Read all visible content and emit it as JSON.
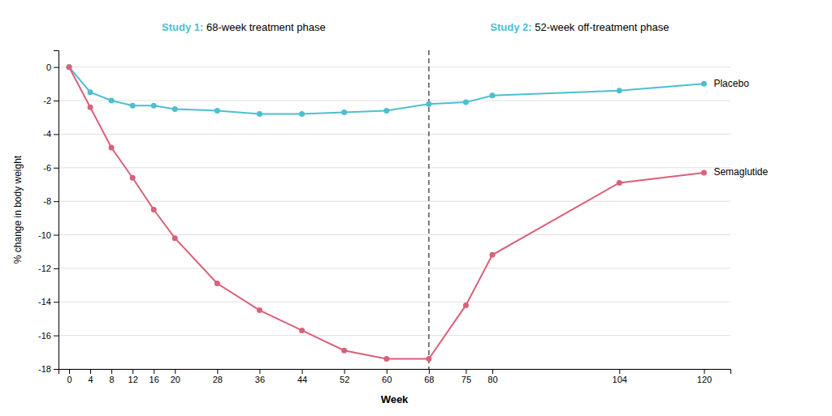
{
  "chart_data": {
    "type": "line",
    "x": [
      0,
      4,
      8,
      12,
      16,
      20,
      28,
      36,
      44,
      52,
      60,
      68,
      75,
      80,
      104,
      120
    ],
    "series": [
      {
        "name": "Placebo",
        "color": "#4DBFCF",
        "marker": "circle",
        "line_style": "solid",
        "values": [
          0,
          -1.5,
          -2.0,
          -2.3,
          -2.3,
          -2.5,
          -2.6,
          -2.8,
          -2.8,
          -2.7,
          -2.6,
          -2.2,
          -2.1,
          -1.7,
          -1.4,
          -1.0
        ]
      },
      {
        "name": "Semaglutide",
        "color": "#D9617A",
        "marker": "circle",
        "line_style": "solid",
        "values": [
          0,
          -2.4,
          -4.8,
          -6.6,
          -8.5,
          -10.2,
          -12.9,
          -14.5,
          -15.7,
          -16.9,
          -17.4,
          -17.4,
          -14.2,
          -11.2,
          -6.9,
          -6.3
        ]
      }
    ],
    "xlabel": "Week",
    "ylabel": "% change in body weight",
    "xlim": [
      -2,
      125
    ],
    "ylim": [
      -18,
      1
    ],
    "xticks": [
      0,
      4,
      8,
      12,
      16,
      20,
      28,
      36,
      44,
      52,
      60,
      68,
      75,
      80,
      104,
      120
    ],
    "yticks": [
      0,
      -2,
      -4,
      -6,
      -8,
      -10,
      -12,
      -14,
      -16,
      -18
    ],
    "grid": true,
    "annotations": [
      {
        "x": 68,
        "line_style": "dashed"
      },
      {
        "text": "Study 1:",
        "color": "#4DBFCF"
      },
      {
        "text": " 68-week treatment phase"
      },
      {
        "text": "Study 2:",
        "color": "#4DBFCF"
      },
      {
        "text": " 52-week off-treatment phase"
      }
    ]
  }
}
